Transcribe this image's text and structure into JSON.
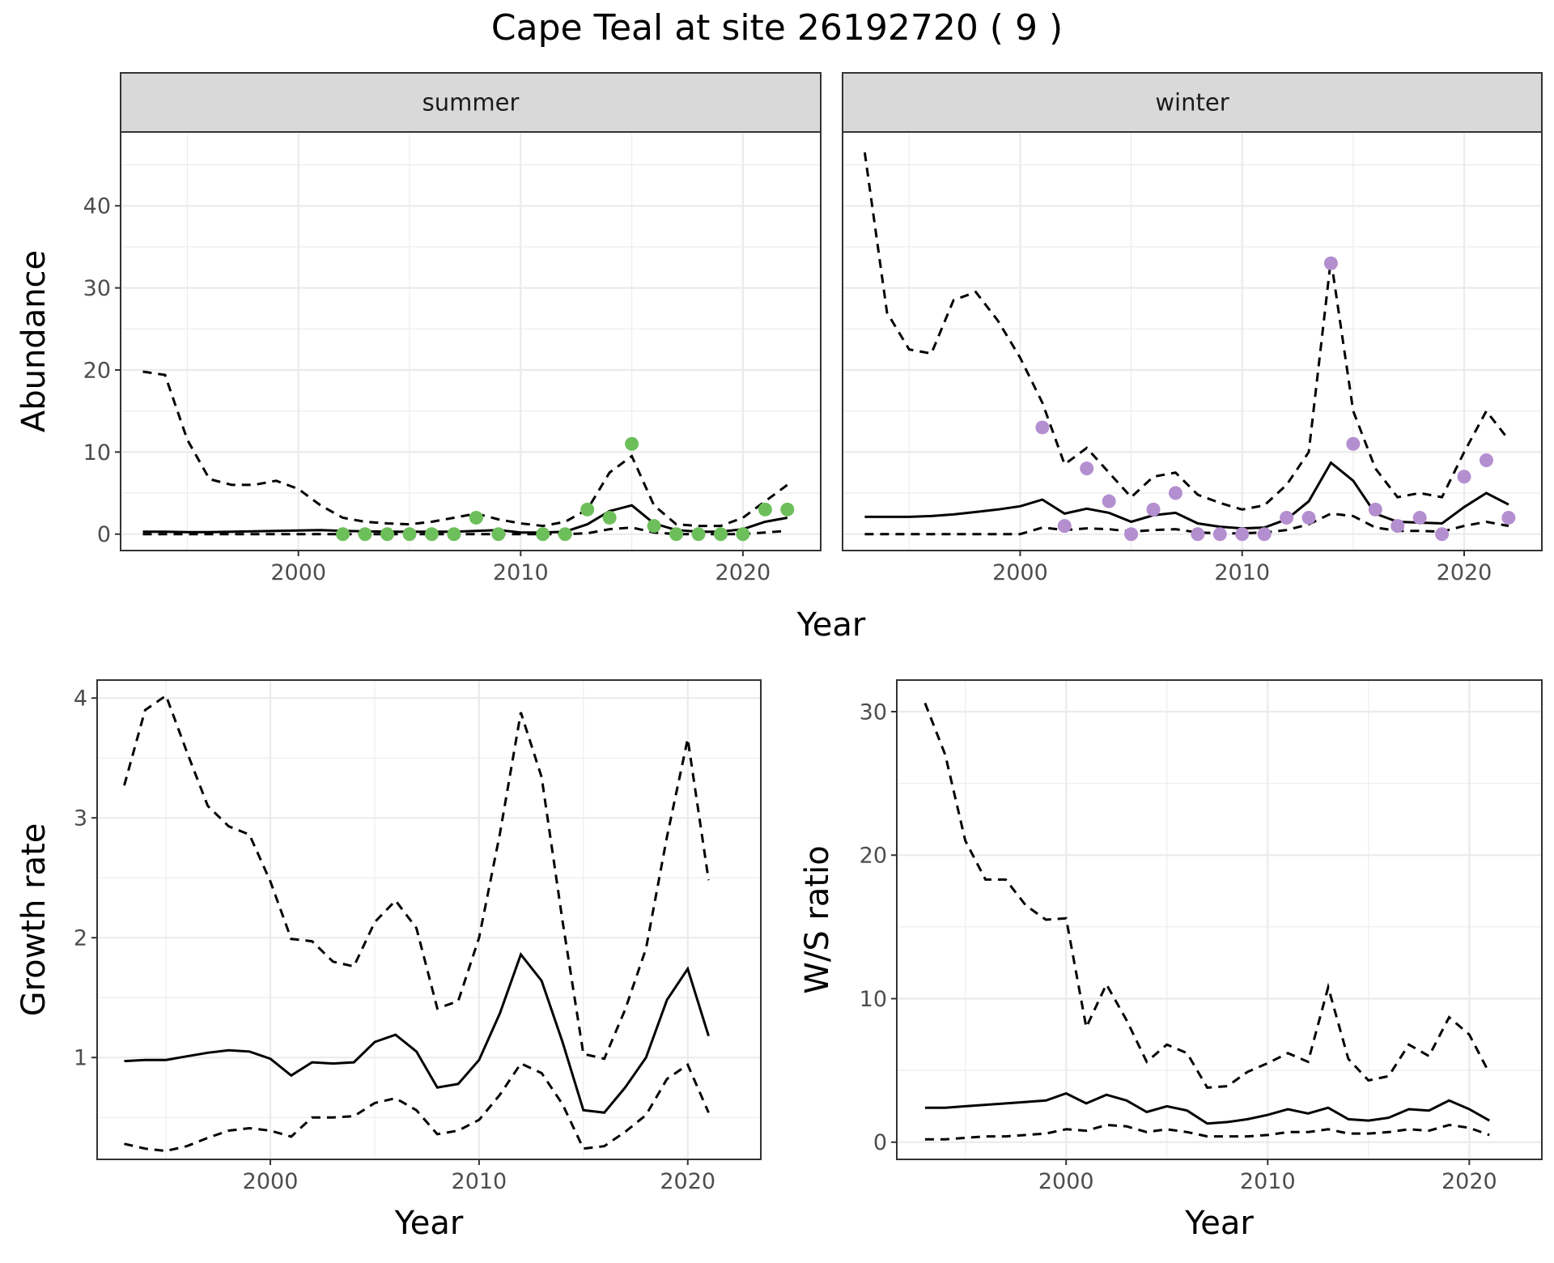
{
  "title": "Cape Teal at site 26192720 ( 9 )",
  "chart_data": [
    {
      "type": "line",
      "facets": [
        "summer",
        "winter"
      ],
      "xlabel": "Year",
      "ylabel": "Abundance",
      "xlim": [
        1992,
        2023.5
      ],
      "ylim": [
        -2,
        49
      ],
      "xticks": [
        2000,
        2010,
        2020
      ],
      "yticks": [
        0,
        10,
        20,
        30,
        40
      ],
      "grid": true,
      "x": [
        1993,
        1994,
        1995,
        1996,
        1997,
        1998,
        1999,
        2000,
        2001,
        2002,
        2003,
        2004,
        2005,
        2006,
        2007,
        2008,
        2009,
        2010,
        2011,
        2012,
        2013,
        2014,
        2015,
        2016,
        2017,
        2018,
        2019,
        2020,
        2021,
        2022
      ],
      "summer": {
        "point_color": "#6dbf5b",
        "mean": [
          0.3,
          0.3,
          0.25,
          0.25,
          0.3,
          0.35,
          0.4,
          0.45,
          0.5,
          0.4,
          0.35,
          0.3,
          0.3,
          0.3,
          0.3,
          0.4,
          0.5,
          0.2,
          0.2,
          0.3,
          1.2,
          2.8,
          3.5,
          1.3,
          0.5,
          0.3,
          0.3,
          0.6,
          1.5,
          2.0
        ],
        "upper": [
          19.8,
          19.4,
          11.5,
          6.7,
          6.0,
          6.0,
          6.5,
          5.5,
          3.5,
          2.0,
          1.5,
          1.3,
          1.2,
          1.5,
          2.0,
          2.5,
          1.8,
          1.3,
          1.0,
          1.5,
          3.0,
          7.5,
          9.5,
          3.5,
          1.2,
          1.0,
          1.0,
          2.0,
          4.0,
          6.0
        ],
        "lower": [
          0,
          0,
          0,
          0,
          0,
          0,
          0,
          0,
          0,
          0,
          0,
          0,
          0,
          0,
          0,
          0,
          0,
          0,
          0,
          0,
          0.1,
          0.6,
          0.8,
          0.2,
          0,
          0,
          0,
          0,
          0.2,
          0.4
        ],
        "obs_x": [
          2002,
          2003,
          2004,
          2005,
          2006,
          2007,
          2008,
          2009,
          2011,
          2012,
          2013,
          2014,
          2015,
          2016,
          2017,
          2018,
          2019,
          2020,
          2021,
          2022
        ],
        "obs_y": [
          0,
          0,
          0,
          0,
          0,
          0,
          2,
          0,
          0,
          0,
          3,
          2,
          11,
          1,
          0,
          0,
          0,
          0,
          3,
          3
        ]
      },
      "winter": {
        "point_color": "#b48fd0",
        "mean": [
          2.1,
          2.1,
          2.1,
          2.2,
          2.4,
          2.7,
          3.0,
          3.4,
          4.2,
          2.5,
          3.1,
          2.6,
          1.5,
          2.3,
          2.6,
          1.3,
          0.9,
          0.7,
          0.8,
          1.8,
          4.0,
          8.7,
          6.5,
          2.5,
          1.5,
          1.4,
          1.3,
          3.3,
          5.0,
          3.6
        ],
        "upper": [
          46.5,
          27.0,
          22.5,
          22.0,
          28.5,
          29.5,
          26.0,
          21.5,
          16.0,
          8.5,
          10.5,
          7.5,
          4.5,
          7.0,
          7.5,
          4.8,
          3.8,
          3.0,
          3.5,
          6.0,
          10.0,
          33.5,
          15.0,
          8.0,
          4.5,
          5.0,
          4.5,
          10.0,
          15.0,
          11.5
        ],
        "lower": [
          0,
          0,
          0,
          0,
          0,
          0,
          0,
          0,
          0.8,
          0.5,
          0.7,
          0.6,
          0.3,
          0.5,
          0.6,
          0.2,
          0.1,
          0.1,
          0.2,
          0.5,
          1.2,
          2.5,
          2.2,
          0.8,
          0.4,
          0.4,
          0.3,
          1.0,
          1.5,
          1.0
        ],
        "obs_x": [
          2001,
          2002,
          2003,
          2004,
          2005,
          2006,
          2007,
          2008,
          2009,
          2010,
          2011,
          2012,
          2013,
          2014,
          2015,
          2016,
          2017,
          2018,
          2019,
          2020,
          2021,
          2022
        ],
        "obs_y": [
          13,
          1,
          8,
          4,
          0,
          3,
          5,
          0,
          0,
          0,
          0,
          2,
          2,
          33,
          11,
          3,
          1,
          2,
          0,
          7,
          9,
          2
        ]
      }
    },
    {
      "type": "line",
      "xlabel": "Year",
      "ylabel": "Growth rate",
      "xlim": [
        1991.7,
        2023.5
      ],
      "ylim": [
        0.15,
        4.15
      ],
      "xticks": [
        2000,
        2010,
        2020
      ],
      "yticks": [
        1,
        2,
        3,
        4
      ],
      "grid": true,
      "x": [
        1993,
        1994,
        1995,
        1996,
        1997,
        1998,
        1999,
        2000,
        2001,
        2002,
        2003,
        2004,
        2005,
        2006,
        2007,
        2008,
        2009,
        2010,
        2011,
        2012,
        2013,
        2014,
        2015,
        2016,
        2017,
        2018,
        2019,
        2020,
        2021
      ],
      "mean": [
        0.97,
        0.98,
        0.98,
        1.01,
        1.04,
        1.06,
        1.05,
        0.99,
        0.85,
        0.96,
        0.95,
        0.96,
        1.13,
        1.19,
        1.05,
        0.75,
        0.78,
        0.98,
        1.37,
        1.86,
        1.64,
        1.13,
        0.56,
        0.54,
        0.75,
        1.0,
        1.48,
        1.74,
        1.18
      ],
      "upper": [
        3.27,
        3.9,
        4.02,
        3.55,
        3.1,
        2.93,
        2.86,
        2.47,
        1.99,
        1.97,
        1.8,
        1.76,
        2.13,
        2.31,
        2.08,
        1.41,
        1.47,
        2.0,
        2.87,
        3.88,
        3.34,
        2.14,
        1.03,
        0.99,
        1.4,
        1.91,
        2.84,
        3.66,
        2.48
      ],
      "lower": [
        0.28,
        0.24,
        0.22,
        0.26,
        0.33,
        0.39,
        0.41,
        0.39,
        0.34,
        0.5,
        0.5,
        0.51,
        0.62,
        0.66,
        0.56,
        0.36,
        0.39,
        0.48,
        0.69,
        0.95,
        0.87,
        0.61,
        0.24,
        0.26,
        0.38,
        0.52,
        0.82,
        0.94,
        0.54
      ]
    },
    {
      "type": "line",
      "xlabel": "Year",
      "ylabel": "W/S ratio",
      "xlim": [
        1991.6,
        2023.6
      ],
      "ylim": [
        -1.2,
        32.2
      ],
      "xticks": [
        2000,
        2010,
        2020
      ],
      "yticks": [
        0,
        10,
        20,
        30
      ],
      "grid": true,
      "x": [
        1993,
        1994,
        1995,
        1996,
        1997,
        1998,
        1999,
        2000,
        2001,
        2002,
        2003,
        2004,
        2005,
        2006,
        2007,
        2008,
        2009,
        2010,
        2011,
        2012,
        2013,
        2014,
        2015,
        2016,
        2017,
        2018,
        2019,
        2020,
        2021
      ],
      "mean": [
        2.4,
        2.4,
        2.5,
        2.6,
        2.7,
        2.8,
        2.9,
        3.4,
        2.7,
        3.3,
        2.9,
        2.1,
        2.5,
        2.2,
        1.3,
        1.4,
        1.6,
        1.9,
        2.3,
        2.0,
        2.4,
        1.6,
        1.5,
        1.7,
        2.3,
        2.2,
        2.9,
        2.3,
        1.5
      ],
      "upper": [
        30.6,
        27.0,
        21.0,
        18.3,
        18.3,
        16.5,
        15.5,
        15.6,
        8.0,
        11.0,
        8.5,
        5.6,
        6.8,
        6.2,
        3.8,
        3.9,
        4.9,
        5.5,
        6.2,
        5.6,
        10.8,
        5.8,
        4.3,
        4.6,
        6.8,
        6.0,
        8.7,
        7.5,
        4.8
      ],
      "lower": [
        0.2,
        0.2,
        0.3,
        0.4,
        0.4,
        0.5,
        0.6,
        0.9,
        0.8,
        1.2,
        1.1,
        0.7,
        0.9,
        0.7,
        0.4,
        0.4,
        0.4,
        0.5,
        0.7,
        0.7,
        0.9,
        0.6,
        0.6,
        0.7,
        0.9,
        0.8,
        1.2,
        1.0,
        0.5
      ]
    }
  ]
}
